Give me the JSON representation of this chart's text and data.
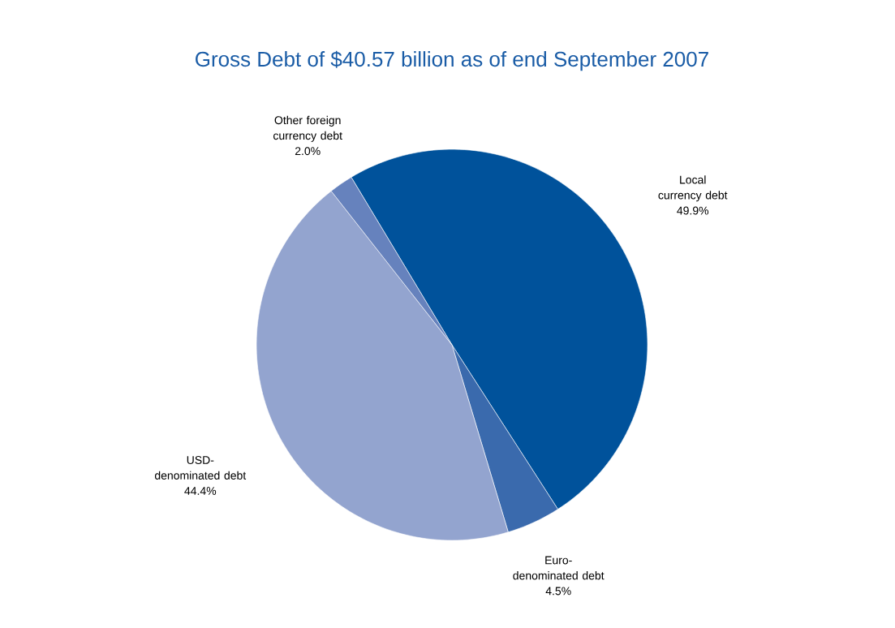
{
  "chart_data": {
    "type": "pie",
    "title": "Gross Debt of $40.57 billion as of end September 2007",
    "categories": [
      "Local currency debt",
      "Euro-denominated debt",
      "USD-denominated debt",
      "Other foreign currency debt"
    ],
    "values": [
      49.9,
      4.5,
      44.4,
      2.0
    ],
    "value_labels": [
      "49.9%",
      "4.5%",
      "44.4%",
      "2.0%"
    ],
    "colors": [
      "#00529b",
      "#3a6aad",
      "#93a4cf",
      "#6682bd"
    ]
  }
}
